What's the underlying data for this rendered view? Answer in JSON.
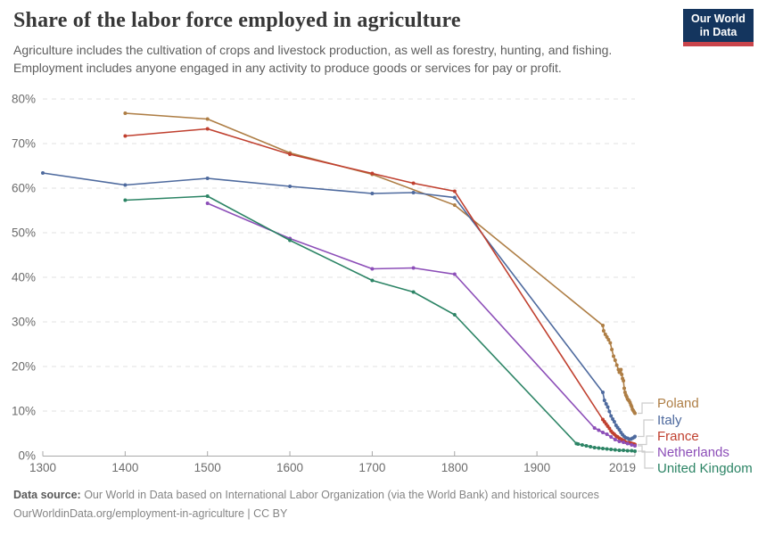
{
  "header": {
    "title": "Share of the labor force employed in agriculture",
    "subtitle": "Agriculture includes the cultivation of crops and livestock production, as well as forestry, hunting, and fishing. Employment includes anyone engaged in any activity to produce goods or services for pay or profit.",
    "logo": {
      "line1": "Our World",
      "line2": "in Data",
      "bg_color": "#14355E",
      "accent_color": "#C9444B"
    }
  },
  "footer": {
    "source_label": "Data source:",
    "source_text": " Our World in Data based on International Labor Organization (via the World Bank) and historical sources",
    "link_text": "OurWorldinData.org/employment-in-agriculture | CC BY"
  },
  "chart_data": {
    "type": "line",
    "title": "Share of the labor force employed in agriculture",
    "xlabel": "",
    "ylabel": "",
    "x_range": [
      1300,
      2019
    ],
    "ylim": [
      0,
      80
    ],
    "grid": true,
    "grid_style": "dashed",
    "legend_position": "right",
    "yticks": [
      {
        "value": 0,
        "label": "0%"
      },
      {
        "value": 10,
        "label": "10%"
      },
      {
        "value": 20,
        "label": "20%"
      },
      {
        "value": 30,
        "label": "30%"
      },
      {
        "value": 40,
        "label": "40%"
      },
      {
        "value": 50,
        "label": "50%"
      },
      {
        "value": 60,
        "label": "60%"
      },
      {
        "value": 70,
        "label": "70%"
      },
      {
        "value": 80,
        "label": "80%"
      }
    ],
    "xticks": [
      {
        "year": 1300,
        "label": "1300"
      },
      {
        "year": 1400,
        "label": "1400"
      },
      {
        "year": 1500,
        "label": "1500"
      },
      {
        "year": 1600,
        "label": "1600"
      },
      {
        "year": 1700,
        "label": "1700"
      },
      {
        "year": 1800,
        "label": "1800"
      },
      {
        "year": 1900,
        "label": "1900"
      },
      {
        "year": 2019,
        "label": "2019"
      }
    ],
    "series": [
      {
        "name": "Poland",
        "color": "#AE7E45",
        "points": [
          [
            1400,
            76.8
          ],
          [
            1500,
            75.5
          ],
          [
            1600,
            67.9
          ],
          [
            1700,
            63.1
          ],
          [
            1800,
            56.2
          ],
          [
            1980,
            29.2
          ],
          [
            1981,
            28.0
          ],
          [
            1983,
            27.2
          ],
          [
            1985,
            26.6
          ],
          [
            1987,
            26.0
          ],
          [
            1989,
            25.3
          ],
          [
            1991,
            23.8
          ],
          [
            1993,
            22.3
          ],
          [
            1995,
            21.4
          ],
          [
            1997,
            20.3
          ],
          [
            1999,
            19.3
          ],
          [
            2000,
            18.7
          ],
          [
            2001,
            19.2
          ],
          [
            2002,
            19.3
          ],
          [
            2003,
            18.2
          ],
          [
            2004,
            17.3
          ],
          [
            2005,
            16.8
          ],
          [
            2006,
            15.1
          ],
          [
            2007,
            14.2
          ],
          [
            2008,
            13.6
          ],
          [
            2009,
            13.2
          ],
          [
            2010,
            12.7
          ],
          [
            2011,
            12.5
          ],
          [
            2012,
            12.3
          ],
          [
            2013,
            11.9
          ],
          [
            2014,
            11.4
          ],
          [
            2015,
            11.0
          ],
          [
            2016,
            10.4
          ],
          [
            2017,
            10.1
          ],
          [
            2018,
            9.8
          ],
          [
            2019,
            9.5
          ]
        ]
      },
      {
        "name": "Italy",
        "color": "#4E6A9E",
        "points": [
          [
            1300,
            63.4
          ],
          [
            1400,
            60.7
          ],
          [
            1500,
            62.2
          ],
          [
            1600,
            60.4
          ],
          [
            1700,
            58.8
          ],
          [
            1750,
            59.0
          ],
          [
            1800,
            57.9
          ],
          [
            1980,
            14.2
          ],
          [
            1982,
            12.4
          ],
          [
            1984,
            11.6
          ],
          [
            1986,
            10.9
          ],
          [
            1988,
            9.9
          ],
          [
            1990,
            8.9
          ],
          [
            1992,
            8.2
          ],
          [
            1994,
            7.6
          ],
          [
            1996,
            6.8
          ],
          [
            1998,
            6.3
          ],
          [
            2000,
            5.8
          ],
          [
            2002,
            5.2
          ],
          [
            2004,
            4.7
          ],
          [
            2006,
            4.3
          ],
          [
            2008,
            4.0
          ],
          [
            2010,
            3.9
          ],
          [
            2012,
            3.7
          ],
          [
            2014,
            3.7
          ],
          [
            2016,
            3.9
          ],
          [
            2018,
            4.1
          ],
          [
            2019,
            4.3
          ]
        ]
      },
      {
        "name": "France",
        "color": "#C0402F",
        "points": [
          [
            1400,
            71.7
          ],
          [
            1500,
            73.3
          ],
          [
            1600,
            67.6
          ],
          [
            1700,
            63.3
          ],
          [
            1750,
            61.1
          ],
          [
            1800,
            59.3
          ],
          [
            1980,
            8.1
          ],
          [
            1982,
            7.6
          ],
          [
            1984,
            7.1
          ],
          [
            1986,
            6.6
          ],
          [
            1988,
            6.1
          ],
          [
            1990,
            5.5
          ],
          [
            1992,
            5.1
          ],
          [
            1994,
            4.8
          ],
          [
            1996,
            4.4
          ],
          [
            1998,
            4.2
          ],
          [
            2000,
            3.9
          ],
          [
            2002,
            3.7
          ],
          [
            2004,
            3.5
          ],
          [
            2006,
            3.3
          ],
          [
            2008,
            3.0
          ],
          [
            2010,
            2.9
          ],
          [
            2012,
            2.9
          ],
          [
            2014,
            2.8
          ],
          [
            2016,
            2.7
          ],
          [
            2018,
            2.6
          ],
          [
            2019,
            2.5
          ]
        ]
      },
      {
        "name": "Netherlands",
        "color": "#8C4EB8",
        "points": [
          [
            1500,
            56.6
          ],
          [
            1600,
            48.7
          ],
          [
            1700,
            41.9
          ],
          [
            1750,
            42.1
          ],
          [
            1800,
            40.7
          ],
          [
            1970,
            6.2
          ],
          [
            1975,
            5.7
          ],
          [
            1980,
            5.2
          ],
          [
            1985,
            4.8
          ],
          [
            1990,
            4.2
          ],
          [
            1995,
            3.6
          ],
          [
            2000,
            3.2
          ],
          [
            2005,
            3.0
          ],
          [
            2010,
            2.7
          ],
          [
            2015,
            2.4
          ],
          [
            2019,
            2.2
          ]
        ]
      },
      {
        "name": "United Kingdom",
        "color": "#2C8465",
        "points": [
          [
            1400,
            57.3
          ],
          [
            1500,
            58.2
          ],
          [
            1600,
            48.3
          ],
          [
            1700,
            39.3
          ],
          [
            1750,
            36.7
          ],
          [
            1800,
            31.6
          ],
          [
            1948,
            2.7
          ],
          [
            1950,
            2.6
          ],
          [
            1955,
            2.4
          ],
          [
            1960,
            2.2
          ],
          [
            1965,
            2.0
          ],
          [
            1970,
            1.8
          ],
          [
            1975,
            1.7
          ],
          [
            1980,
            1.6
          ],
          [
            1985,
            1.5
          ],
          [
            1990,
            1.4
          ],
          [
            1995,
            1.3
          ],
          [
            2000,
            1.2
          ],
          [
            2005,
            1.2
          ],
          [
            2010,
            1.1
          ],
          [
            2015,
            1.1
          ],
          [
            2019,
            1.0
          ]
        ]
      }
    ]
  }
}
